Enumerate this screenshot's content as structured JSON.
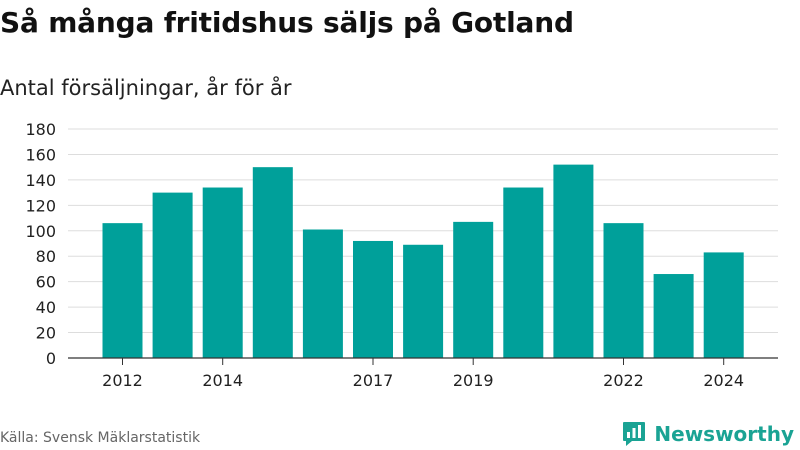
{
  "title": "Så många fritidshus säljs på Gotland",
  "subtitle": "Antal försäljningar, år för år",
  "source": "Källa: Svensk Mäklarstatistik",
  "brand": {
    "name": "Newsworthy",
    "logo_icon": "newsworthy-logo-icon",
    "color": "#1aa394"
  },
  "colors": {
    "bar": "#00a09a",
    "grid": "#dddddd",
    "axis": "#333333",
    "tick_text": "#222222"
  },
  "chart_data": {
    "type": "bar",
    "categories": [
      "2012",
      "2013",
      "2014",
      "2015",
      "2016",
      "2017",
      "2018",
      "2019",
      "2020",
      "2021",
      "2022",
      "2023",
      "2024"
    ],
    "values": [
      106,
      130,
      134,
      150,
      101,
      92,
      89,
      107,
      134,
      152,
      106,
      66,
      83
    ],
    "x_tick_labels": [
      "2012",
      "",
      "2014",
      "",
      "",
      "2017",
      "",
      "2019",
      "",
      "",
      "2022",
      "",
      "2024"
    ],
    "y_ticks": [
      0,
      20,
      40,
      60,
      80,
      100,
      120,
      140,
      160,
      180
    ],
    "ylim": [
      0,
      180
    ],
    "grid": true,
    "title": "Så många fritidshus säljs på Gotland",
    "subtitle": "Antal försäljningar, år för år",
    "xlabel": "",
    "ylabel": ""
  }
}
